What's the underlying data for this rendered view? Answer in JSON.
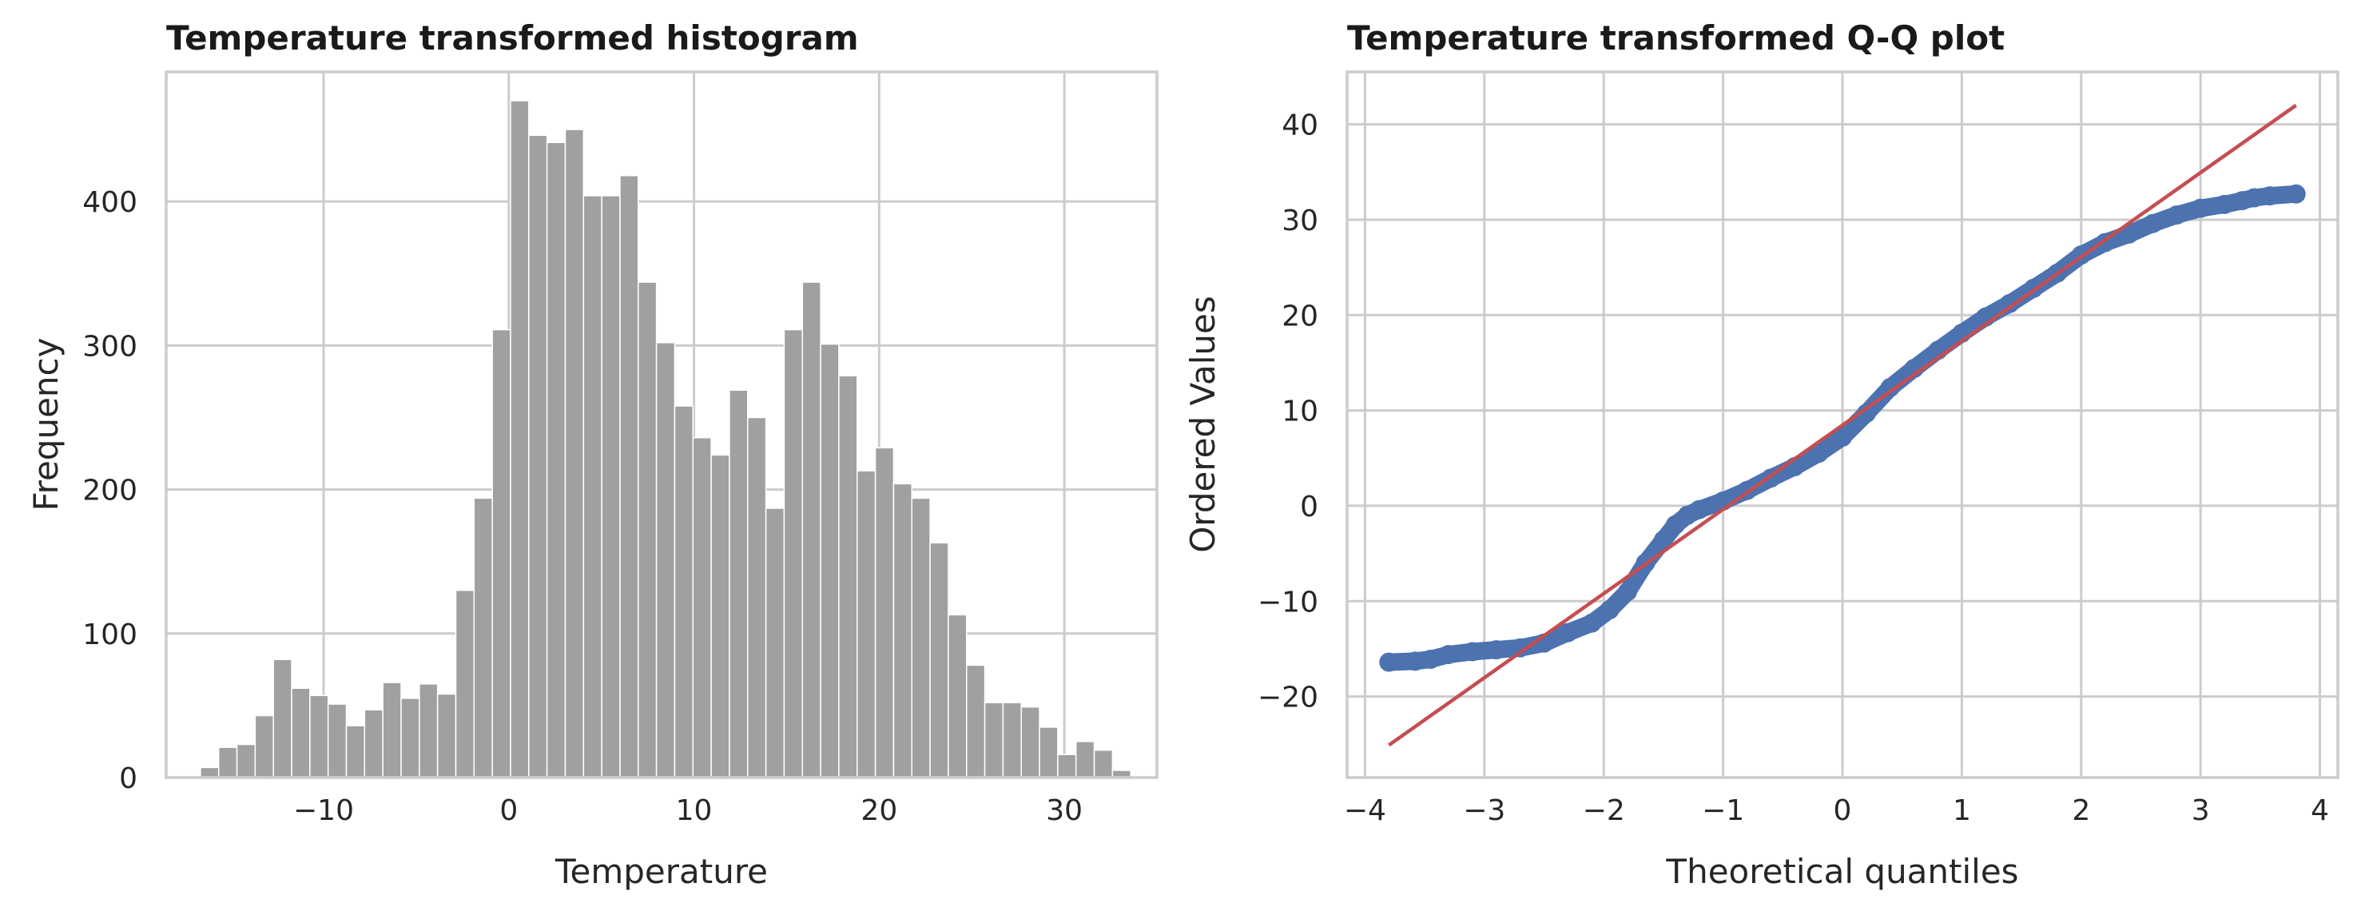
{
  "chart_data": [
    {
      "type": "bar",
      "title": "Temperature transformed histogram",
      "xlabel": "Temperature",
      "ylabel": "Frequency",
      "xlim": [
        -18.5,
        35
      ],
      "ylim": [
        0,
        490
      ],
      "xticks": [
        -10,
        0,
        10,
        20,
        30
      ],
      "xtick_labels": [
        "−10",
        "0",
        "10",
        "20",
        "30"
      ],
      "yticks": [
        0,
        100,
        200,
        300,
        400
      ],
      "ytick_labels": [
        "0",
        "100",
        "200",
        "300",
        "400"
      ],
      "grid": true,
      "bar_color": "#a0a0a0",
      "bin_start": -16.65,
      "bin_width": 0.985,
      "values": [
        7,
        21,
        23,
        43,
        82,
        62,
        57,
        51,
        36,
        47,
        66,
        55,
        65,
        58,
        130,
        194,
        311,
        470,
        446,
        441,
        450,
        404,
        404,
        418,
        344,
        302,
        258,
        236,
        224,
        269,
        250,
        187,
        311,
        344,
        301,
        279,
        213,
        229,
        204,
        194,
        163,
        113,
        78,
        52,
        52,
        49,
        35,
        16,
        25,
        19,
        5
      ]
    },
    {
      "type": "scatter",
      "title": "Temperature transformed Q-Q plot",
      "xlabel": "Theoretical quantiles",
      "ylabel": "Ordered Values",
      "xlim": [
        -4.15,
        4.15
      ],
      "ylim": [
        -28.5,
        45.5
      ],
      "xticks": [
        -4,
        -3,
        -2,
        -1,
        0,
        1,
        2,
        3,
        4
      ],
      "xtick_labels": [
        "−4",
        "−3",
        "−2",
        "−1",
        "0",
        "1",
        "2",
        "3",
        "4"
      ],
      "yticks": [
        -20,
        -10,
        0,
        10,
        20,
        30,
        40
      ],
      "ytick_labels": [
        "−20",
        "−10",
        "0",
        "10",
        "20",
        "30",
        "40"
      ],
      "grid": true,
      "point_color": "#4c72b0",
      "line_color": "#c44e52",
      "points": [
        [
          -3.8,
          -16.4
        ],
        [
          -3.58,
          -16.3
        ],
        [
          -3.45,
          -16.1
        ],
        [
          -3.3,
          -15.6
        ],
        [
          -3.1,
          -15.3
        ],
        [
          -2.9,
          -15.1
        ],
        [
          -2.7,
          -14.9
        ],
        [
          -2.5,
          -14.4
        ],
        [
          -2.3,
          -13.3
        ],
        [
          -2.1,
          -12.3
        ],
        [
          -1.95,
          -10.9
        ],
        [
          -1.8,
          -9.0
        ],
        [
          -1.65,
          -6.0
        ],
        [
          -1.5,
          -3.6
        ],
        [
          -1.4,
          -2.0
        ],
        [
          -1.3,
          -1.0
        ],
        [
          -1.2,
          -0.4
        ],
        [
          -1.0,
          0.5
        ],
        [
          -0.8,
          1.6
        ],
        [
          -0.6,
          2.9
        ],
        [
          -0.4,
          4.1
        ],
        [
          -0.2,
          5.5
        ],
        [
          0.0,
          7.2
        ],
        [
          0.2,
          9.7
        ],
        [
          0.4,
          12.4
        ],
        [
          0.6,
          14.4
        ],
        [
          0.8,
          16.3
        ],
        [
          1.0,
          18.1
        ],
        [
          1.2,
          19.8
        ],
        [
          1.4,
          21.2
        ],
        [
          1.6,
          22.8
        ],
        [
          1.8,
          24.4
        ],
        [
          2.0,
          26.3
        ],
        [
          2.2,
          27.6
        ],
        [
          2.4,
          28.5
        ],
        [
          2.6,
          29.6
        ],
        [
          2.8,
          30.5
        ],
        [
          3.0,
          31.2
        ],
        [
          3.2,
          31.6
        ],
        [
          3.35,
          32.0
        ],
        [
          3.45,
          32.3
        ],
        [
          3.58,
          32.5
        ],
        [
          3.8,
          32.7
        ]
      ],
      "fit_line": [
        [
          -3.8,
          -25.1
        ],
        [
          3.8,
          42.0
        ]
      ]
    }
  ]
}
